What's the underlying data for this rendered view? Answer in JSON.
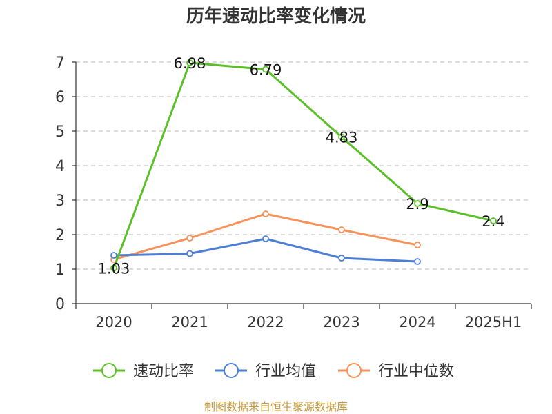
{
  "chart_data": {
    "type": "line",
    "title": "历年速动比率变化情况",
    "categories": [
      "2020",
      "2021",
      "2022",
      "2023",
      "2024",
      "2025H1"
    ],
    "ylim": [
      0,
      7
    ],
    "yticks": [
      0,
      1,
      2,
      3,
      4,
      5,
      6,
      7
    ],
    "grid": true,
    "legend_position": "bottom",
    "series": [
      {
        "name": "速动比率",
        "color": "#5cbf2a",
        "values": [
          1.03,
          6.98,
          6.79,
          4.83,
          2.9,
          2.4
        ],
        "labels": [
          "1.03",
          "6.98",
          "6.79",
          "4.83",
          "2.9",
          "2.4"
        ]
      },
      {
        "name": "行业均值",
        "color": "#4e7fd6",
        "values": [
          1.4,
          1.45,
          1.88,
          1.32,
          1.22,
          null
        ]
      },
      {
        "name": "行业中位数",
        "color": "#f5935b",
        "values": [
          1.28,
          1.9,
          2.6,
          2.14,
          1.7,
          null
        ]
      }
    ],
    "source": "制图数据来自恒生聚源数据库"
  }
}
